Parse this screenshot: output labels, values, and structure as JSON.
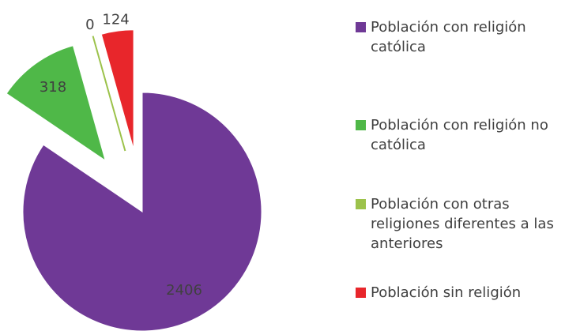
{
  "chart_data": {
    "type": "pie",
    "categories": [
      "Población con religión católica",
      "Población con religión no católica",
      "Población con otras religiones diferentes a las anteriores",
      "Población sin religión"
    ],
    "values": [
      2406,
      318,
      0,
      124
    ],
    "colors": [
      "#6f3996",
      "#4fb848",
      "#9cc24b",
      "#e8262b"
    ],
    "exploded": [
      false,
      true,
      true,
      true
    ],
    "legend": "right"
  }
}
